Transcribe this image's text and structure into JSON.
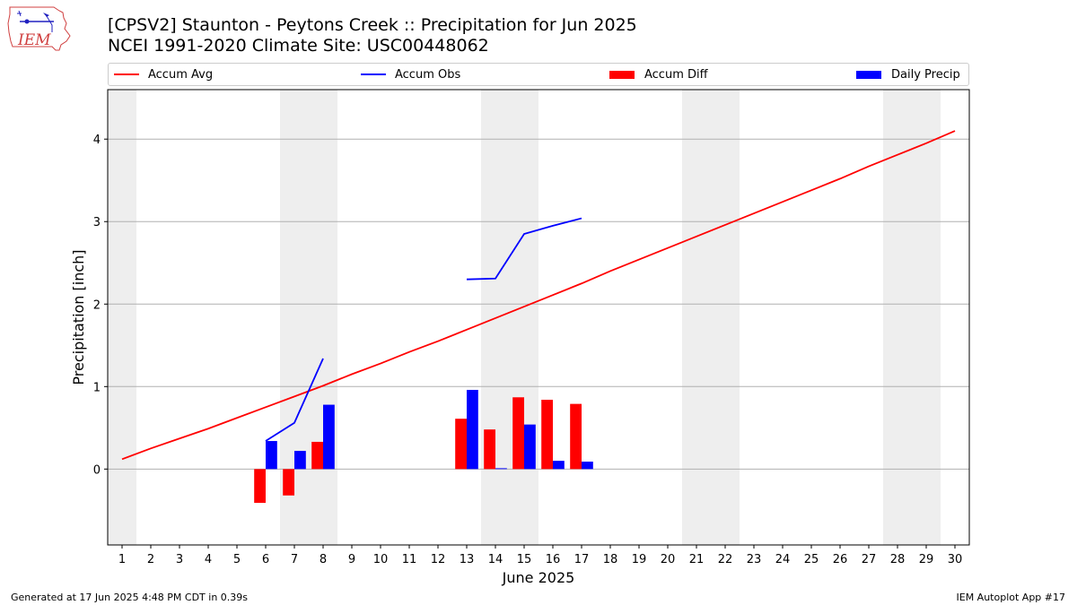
{
  "header": {
    "title_line1": "[CPSV2] Staunton - Peytons Creek :: Precipitation for Jun 2025",
    "title_line2": "NCEI 1991-2020 Climate Site: USC00448062",
    "logo_text": "IEM"
  },
  "legend": {
    "placement": "top, horizontal",
    "items": [
      {
        "label": "Accum Avg",
        "kind": "line",
        "color": "#ff0000"
      },
      {
        "label": "Accum Obs",
        "kind": "line",
        "color": "#0000ff"
      },
      {
        "label": "Accum Diff",
        "kind": "bar",
        "color": "#ff0000"
      },
      {
        "label": "Daily Precip",
        "kind": "bar",
        "color": "#0000ff"
      }
    ]
  },
  "footer": {
    "left": "Generated at 17 Jun 2025 4:48 PM CDT in 0.39s",
    "right": "IEM Autoplot App #17"
  },
  "chart_data": {
    "type": "bar",
    "xlabel": "June 2025",
    "ylabel": "Precipitation [inch]",
    "xlim": [
      0.5,
      30.5
    ],
    "ylim": [
      -0.92,
      4.6
    ],
    "grid": "horizontal",
    "yticks": [
      0,
      1,
      2,
      3,
      4
    ],
    "x": [
      1,
      2,
      3,
      4,
      5,
      6,
      7,
      8,
      9,
      10,
      11,
      12,
      13,
      14,
      15,
      16,
      17,
      18,
      19,
      20,
      21,
      22,
      23,
      24,
      25,
      26,
      27,
      28,
      29,
      30
    ],
    "weekend_shading": [
      [
        0.5,
        1.5
      ],
      [
        6.5,
        8.5
      ],
      [
        13.5,
        15.5
      ],
      [
        20.5,
        22.5
      ],
      [
        27.5,
        29.5
      ]
    ],
    "series": [
      {
        "name": "Accum Avg",
        "type": "line",
        "color": "#ff0000",
        "x": [
          1,
          2,
          3,
          4,
          5,
          6,
          7,
          8,
          9,
          10,
          11,
          12,
          13,
          14,
          15,
          16,
          17,
          18,
          19,
          20,
          21,
          22,
          23,
          24,
          25,
          26,
          27,
          28,
          29,
          30
        ],
        "values": [
          0.12,
          0.25,
          0.37,
          0.49,
          0.62,
          0.75,
          0.88,
          1.01,
          1.15,
          1.28,
          1.42,
          1.55,
          1.69,
          1.83,
          1.97,
          2.11,
          2.25,
          2.4,
          2.54,
          2.68,
          2.82,
          2.96,
          3.1,
          3.24,
          3.38,
          3.52,
          3.67,
          3.81,
          3.95,
          4.1
        ]
      },
      {
        "name": "Accum Obs",
        "type": "line",
        "color": "#0000ff",
        "segments": [
          {
            "x": [
              6,
              7,
              8
            ],
            "values": [
              0.34,
              0.56,
              1.34
            ]
          },
          {
            "x": [
              13,
              14,
              15,
              16,
              17
            ],
            "values": [
              2.3,
              2.31,
              2.85,
              2.95,
              3.04
            ]
          }
        ]
      },
      {
        "name": "Accum Diff",
        "type": "bar",
        "color": "#ff0000",
        "x": [
          6,
          7,
          8,
          13,
          14,
          15,
          16,
          17
        ],
        "values": [
          -0.41,
          -0.32,
          0.33,
          0.61,
          0.48,
          0.87,
          0.84,
          0.79
        ]
      },
      {
        "name": "Daily Precip",
        "type": "bar",
        "color": "#0000ff",
        "x": [
          6,
          7,
          8,
          13,
          14,
          15,
          16,
          17
        ],
        "values": [
          0.34,
          0.22,
          0.78,
          0.96,
          0.01,
          0.54,
          0.1,
          0.09
        ]
      }
    ]
  }
}
